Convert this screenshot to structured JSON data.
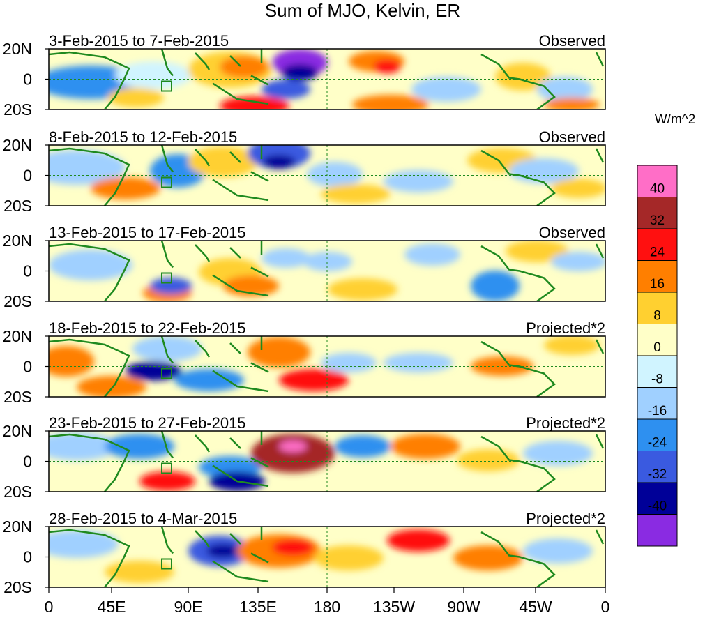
{
  "figure": {
    "title": "Sum of MJO, Kelvin, ER"
  },
  "panels": [
    {
      "date_range": "3-Feb-2015 to 7-Feb-2015",
      "status": "Observed"
    },
    {
      "date_range": "8-Feb-2015 to 12-Feb-2015",
      "status": "Observed"
    },
    {
      "date_range": "13-Feb-2015 to 17-Feb-2015",
      "status": "Observed"
    },
    {
      "date_range": "18-Feb-2015 to 22-Feb-2015",
      "status": "Projected*2"
    },
    {
      "date_range": "23-Feb-2015 to 27-Feb-2015",
      "status": "Projected*2"
    },
    {
      "date_range": "28-Feb-2015 to 4-Mar-2015",
      "status": "Projected*2"
    }
  ],
  "axes": {
    "lat_ticks": [
      "20N",
      "0",
      "20S"
    ],
    "lon_ticks": [
      "0",
      "45E",
      "90E",
      "135E",
      "180",
      "135W",
      "90W",
      "45W",
      "0"
    ]
  },
  "colorbar": {
    "units": "W/m^2",
    "levels": [
      "40",
      "32",
      "24",
      "16",
      "8",
      "0",
      "-8",
      "-16",
      "-24",
      "-32",
      "-40"
    ],
    "colors": [
      "#ff6ec7",
      "#a52828",
      "#ff1010",
      "#ff7f00",
      "#ffd030",
      "#ffffc8",
      "#d0f4ff",
      "#a0d0ff",
      "#2e90f0",
      "#3a5ae0",
      "#000098",
      "#8a2be2"
    ]
  },
  "map_style": {
    "coastline_color": "#1f8a1f",
    "dashed_lines": [
      "equator",
      "180"
    ]
  }
}
